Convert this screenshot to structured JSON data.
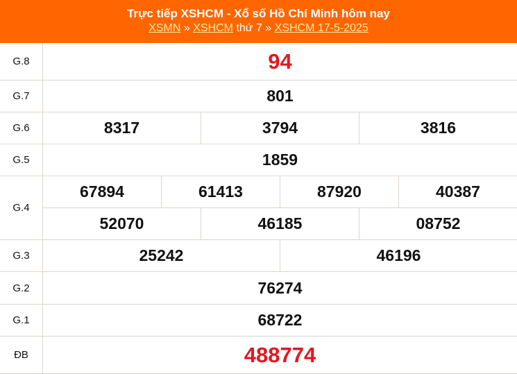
{
  "header": {
    "title": "Trực tiếp XSHCM - Xổ số Hồ Chí Minh hôm nay",
    "crumbs": {
      "link1": "XSMN",
      "sep1": " » ",
      "link2": "XSHCM",
      "text": " thứ 7 ",
      "sep2": "» ",
      "link3": "XSHCM 17-5-2025"
    }
  },
  "colors": {
    "header_bg": "#ff6600",
    "highlight": "#e4161f"
  },
  "prizes": [
    {
      "label": "G.8",
      "rows": [
        [
          "94"
        ]
      ]
    },
    {
      "label": "G.7",
      "rows": [
        [
          "801"
        ]
      ]
    },
    {
      "label": "G.6",
      "rows": [
        [
          "8317",
          "3794",
          "3816"
        ]
      ]
    },
    {
      "label": "G.5",
      "rows": [
        [
          "1859"
        ]
      ]
    },
    {
      "label": "G.4",
      "rows": [
        [
          "67894",
          "61413",
          "87920",
          "40387"
        ],
        [
          "52070",
          "46185",
          "08752"
        ]
      ]
    },
    {
      "label": "G.3",
      "rows": [
        [
          "25242",
          "46196"
        ]
      ]
    },
    {
      "label": "G.2",
      "rows": [
        [
          "76274"
        ]
      ]
    },
    {
      "label": "G.1",
      "rows": [
        [
          "68722"
        ]
      ]
    },
    {
      "label": "ĐB",
      "rows": [
        [
          "488774"
        ]
      ]
    }
  ]
}
